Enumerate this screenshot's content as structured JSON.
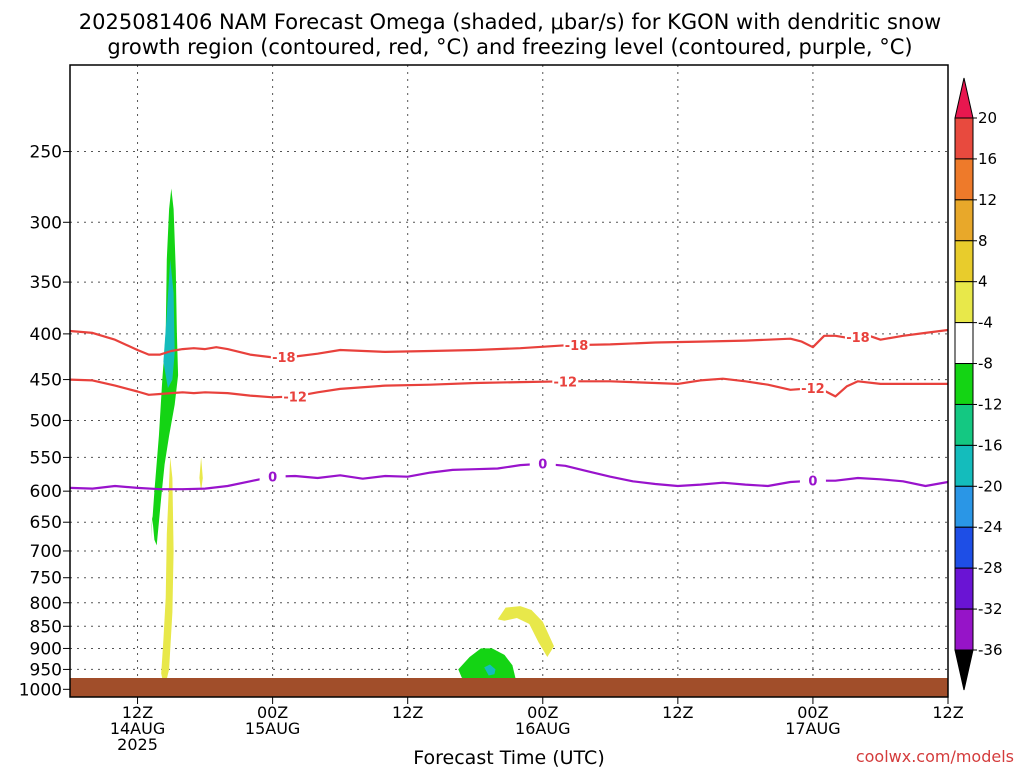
{
  "chart_data": {
    "type": "heatmap",
    "title_line1": "2025081406 NAM Forecast Omega (shaded, μbar/s) for KGON with dendritic snow",
    "title_line2": "growth region (contoured, red, °C) and freezing level (contoured, purple, °C)",
    "xlabel": "Forecast Time (UTC)",
    "credit": "coolwx.com/models",
    "xlim_hours": [
      6,
      84
    ],
    "ylim_mb": [
      1020,
      200
    ],
    "y_log_pressure": true,
    "grid": true,
    "y_ticks": [
      "250",
      "300",
      "350",
      "400",
      "450",
      "500",
      "550",
      "600",
      "650",
      "700",
      "750",
      "800",
      "850",
      "900",
      "950",
      "1000"
    ],
    "x_ticks": [
      {
        "hour": 12,
        "l1": "12Z",
        "l2": "14AUG",
        "l3": "2025"
      },
      {
        "hour": 24,
        "l1": "00Z",
        "l2": "15AUG",
        "l3": ""
      },
      {
        "hour": 36,
        "l1": "12Z",
        "l2": "",
        "l3": ""
      },
      {
        "hour": 48,
        "l1": "00Z",
        "l2": "16AUG",
        "l3": ""
      },
      {
        "hour": 60,
        "l1": "12Z",
        "l2": "",
        "l3": ""
      },
      {
        "hour": 72,
        "l1": "00Z",
        "l2": "17AUG",
        "l3": ""
      },
      {
        "hour": 84,
        "l1": "12Z",
        "l2": "",
        "l3": ""
      }
    ],
    "colorbar": {
      "labels": [
        "20",
        "16",
        "12",
        "8",
        "4",
        "-4",
        "-8",
        "-12",
        "-16",
        "-20",
        "-24",
        "-28",
        "-32",
        "-36"
      ],
      "colors": [
        "#e8174f",
        "#e84a3e",
        "#ee7a2a",
        "#e8a82a",
        "#e8cc2c",
        "#e8e84a",
        "#ffffff",
        "#14d414",
        "#14c882",
        "#14bcbc",
        "#2a96e6",
        "#1e4ee6",
        "#6a14d4",
        "#9614c8",
        "#a0a0a0",
        "#000000"
      ]
    },
    "contours": [
      {
        "label": "-18",
        "color": "#e8413c",
        "x": [
          6,
          8,
          10,
          12,
          13,
          14,
          15,
          16,
          17,
          18,
          19,
          20,
          22,
          24,
          26,
          28,
          30,
          34,
          38,
          42,
          46,
          50,
          54,
          58,
          62,
          66,
          68,
          70,
          71,
          72,
          73,
          74,
          75,
          76,
          77,
          78,
          80,
          82,
          84,
          86,
          90
        ],
        "y": [
          397,
          399,
          406,
          417,
          422,
          422,
          418,
          416,
          415,
          416,
          414,
          416,
          422,
          425,
          424,
          421,
          417,
          419,
          418,
          417,
          415,
          412,
          411,
          409,
          408,
          407,
          406,
          405,
          408,
          414,
          402,
          402,
          404,
          403,
          402,
          406,
          402,
          399,
          396,
          395,
          395
        ],
        "labels_at": [
          25,
          51,
          76
        ]
      },
      {
        "label": "-12",
        "color": "#e8413c",
        "x": [
          6,
          8,
          10,
          12,
          13,
          14,
          15,
          16,
          17,
          18,
          20,
          22,
          24,
          26,
          28,
          30,
          34,
          38,
          42,
          46,
          50,
          54,
          58,
          60,
          62,
          64,
          66,
          68,
          70,
          72,
          73,
          74,
          75,
          76,
          78,
          80,
          84,
          90
        ],
        "y": [
          450,
          451,
          457,
          464,
          468,
          467,
          466,
          465,
          466,
          465,
          466,
          469,
          471,
          470,
          465,
          461,
          457,
          456,
          454,
          453,
          452,
          452,
          454,
          455,
          451,
          449,
          452,
          456,
          462,
          460,
          463,
          470,
          458,
          452,
          455,
          455,
          455,
          452
        ],
        "labels_at": [
          26,
          50,
          72
        ]
      },
      {
        "label": "0",
        "color": "#9913cc",
        "x": [
          6,
          8,
          10,
          12,
          14,
          16,
          18,
          20,
          22,
          24,
          26,
          28,
          30,
          32,
          34,
          36,
          38,
          40,
          42,
          44,
          46,
          48,
          50,
          52,
          54,
          56,
          58,
          60,
          62,
          64,
          66,
          68,
          70,
          72,
          74,
          76,
          78,
          80,
          82,
          84,
          86,
          88,
          90
        ],
        "y": [
          595,
          596,
          592,
          595,
          597,
          597,
          596,
          592,
          585,
          578,
          577,
          580,
          576,
          581,
          577,
          578,
          572,
          568,
          567,
          566,
          561,
          559,
          562,
          570,
          578,
          585,
          589,
          592,
          590,
          587,
          590,
          592,
          586,
          584,
          584,
          580,
          582,
          585,
          592,
          586,
          583,
          587,
          588
        ],
        "labels_at": [
          24,
          48,
          72
        ]
      }
    ],
    "omega_regions": [
      {
        "name": "ascent-column",
        "level": -8,
        "color": "#14d414",
        "x": [
          13.2,
          13.5,
          13.9,
          14.2,
          14.5,
          14.6,
          14.8,
          15.0,
          15.2,
          15.4,
          15.5,
          15.6,
          15.3,
          14.8,
          14.4,
          14.1,
          13.9,
          13.7,
          13.5,
          13.3,
          13.2
        ],
        "y": [
          680,
          600,
          520,
          450,
          400,
          330,
          290,
          275,
          290,
          340,
          400,
          445,
          480,
          520,
          560,
          610,
          650,
          690,
          680,
          640,
          680
        ]
      },
      {
        "name": "ascent-core",
        "level": -12,
        "color": "#14bcbc",
        "x": [
          14.3,
          14.6,
          14.9,
          15.2,
          15.3,
          15.1,
          14.7,
          14.3
        ],
        "y": [
          430,
          380,
          330,
          360,
          420,
          450,
          460,
          430
        ]
      },
      {
        "name": "descent-column",
        "level": 4,
        "color": "#e8e84a",
        "x": [
          14.1,
          14.3,
          14.5,
          14.6,
          14.9,
          15.1,
          15.2,
          15.1,
          14.8,
          14.5,
          14.3,
          14.1
        ],
        "y": [
          960,
          880,
          790,
          670,
          550,
          580,
          700,
          820,
          950,
          985,
          985,
          960
        ]
      },
      {
        "name": "descent-blob",
        "level": 4,
        "color": "#e8e84a",
        "x": [
          17.5,
          17.65,
          17.8,
          17.65,
          17.5
        ],
        "y": [
          580,
          550,
          580,
          600,
          580
        ]
      },
      {
        "name": "ascent-lowlevel",
        "level": -8,
        "color": "#14d414",
        "x": [
          40.5,
          41.5,
          42.5,
          43.5,
          44.6,
          45.3,
          45.6,
          45.3,
          44.5,
          43.5,
          42.5,
          41.5,
          40.8,
          40.5
        ],
        "y": [
          950,
          920,
          900,
          900,
          915,
          940,
          975,
          1000,
          1010,
          1005,
          1000,
          985,
          970,
          950
        ]
      },
      {
        "name": "ascent-lowlevel-core",
        "level": -12,
        "color": "#14bcbc",
        "x": [
          42.8,
          43.3,
          43.8,
          43.7,
          43.2,
          42.8
        ],
        "y": [
          945,
          938,
          950,
          962,
          965,
          945
        ]
      },
      {
        "name": "descent-arc",
        "level": 4,
        "color": "#e8e84a",
        "x": [
          44.0,
          44.7,
          46.0,
          47.0,
          48.0,
          49.0,
          48.4,
          47.6,
          46.8,
          45.7,
          44.6,
          44.0
        ],
        "y": [
          835,
          810,
          807,
          815,
          840,
          895,
          920,
          885,
          845,
          832,
          838,
          835
        ]
      }
    ],
    "ground": {
      "color": "#a14e2a"
    }
  }
}
